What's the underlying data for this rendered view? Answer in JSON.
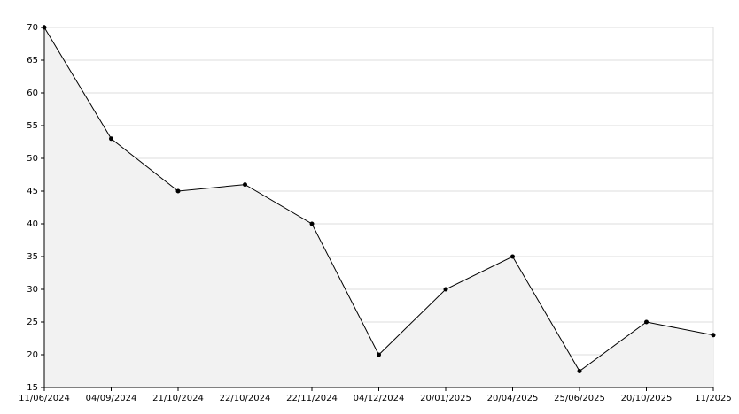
{
  "chart_data": {
    "type": "line",
    "categories": [
      "11/06/2024",
      "04/09/2024",
      "21/10/2024",
      "22/10/2024",
      "22/11/2024",
      "04/12/2024",
      "20/01/2025",
      "20/04/2025",
      "25/06/2025",
      "20/10/2025",
      "11/2025"
    ],
    "values": [
      70,
      53,
      45,
      46,
      40,
      20,
      30,
      35,
      17.5,
      25,
      23
    ],
    "color": "#000000",
    "area_color": "#f2f2f2",
    "ylim": [
      15,
      70
    ],
    "yticks": [
      15,
      20,
      25,
      30,
      35,
      40,
      45,
      50,
      55,
      60,
      65,
      70
    ],
    "grid": true
  }
}
